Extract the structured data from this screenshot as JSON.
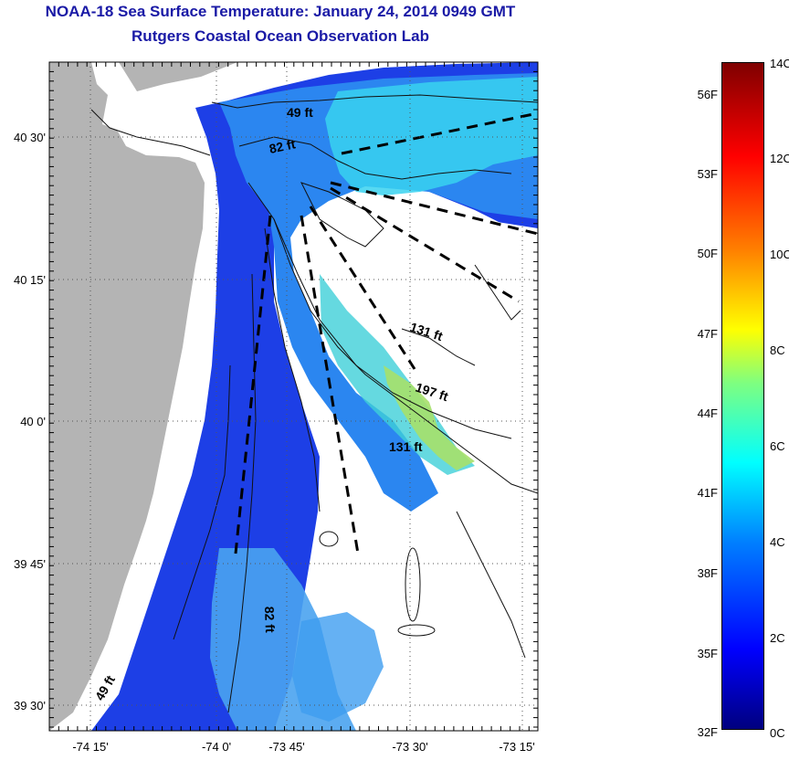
{
  "title": "NOAA-18 Sea Surface Temperature:  January 24, 2014 0949 GMT",
  "subtitle": "Rutgers Coastal Ocean Observation Lab",
  "map": {
    "lon_ticks": [
      "-74 15'",
      "-74 0'",
      "-73 45'",
      "-73 30'",
      "-73 15'"
    ],
    "lat_ticks": [
      "40 30'",
      "40 15'",
      "40 0'",
      "39 45'",
      "39 30'"
    ],
    "depth_labels": [
      "49 ft",
      "82 ft",
      "131 ft",
      "197 ft",
      "131 ft",
      "82 ft",
      "49 ft"
    ],
    "colors": {
      "land": "#b4b4b4",
      "cloud": "#ffffff"
    }
  },
  "colorbar": {
    "fahrenheit": [
      "56F",
      "53F",
      "50F",
      "47F",
      "44F",
      "41F",
      "38F",
      "35F",
      "32F"
    ],
    "celsius": [
      "14C",
      "12C",
      "10C",
      "8C",
      "6C",
      "4C",
      "2C",
      "0C"
    ]
  }
}
